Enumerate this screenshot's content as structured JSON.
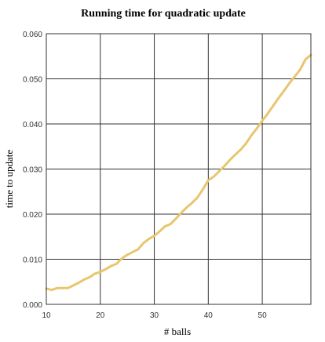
{
  "chart_data": {
    "type": "line",
    "title": "Running time for quadratic update",
    "xlabel": "# balls",
    "ylabel": "time to update",
    "xlim": [
      10,
      59
    ],
    "ylim": [
      0,
      0.06
    ],
    "xticks": [
      10,
      20,
      30,
      40,
      50
    ],
    "xtick_labels": [
      "10",
      "20",
      "30",
      "40",
      "50"
    ],
    "yticks": [
      0,
      0.01,
      0.02,
      0.03,
      0.04,
      0.05,
      0.06
    ],
    "ytick_labels": [
      "0.000",
      "0.010",
      "0.020",
      "0.030",
      "0.040",
      "0.050",
      "0.060"
    ],
    "grid": true,
    "legend": "none",
    "series": [
      {
        "color": "#e8c66e",
        "x": [
          10,
          11,
          12,
          13,
          14,
          15,
          16,
          17,
          18,
          19,
          20,
          21,
          22,
          23,
          24,
          25,
          26,
          27,
          28,
          29,
          30,
          31,
          32,
          33,
          34,
          35,
          36,
          37,
          38,
          39,
          40,
          41,
          42,
          43,
          44,
          45,
          46,
          47,
          48,
          49,
          50,
          51,
          52,
          53,
          54,
          55,
          56,
          57,
          58,
          59
        ],
        "y": [
          0.0035,
          0.0032,
          0.0036,
          0.0036,
          0.0036,
          0.0042,
          0.0048,
          0.0055,
          0.006,
          0.0068,
          0.0072,
          0.0078,
          0.0085,
          0.009,
          0.0102,
          0.011,
          0.0116,
          0.0122,
          0.0136,
          0.0145,
          0.0152,
          0.0162,
          0.0173,
          0.0178,
          0.019,
          0.0203,
          0.0215,
          0.0225,
          0.0237,
          0.0255,
          0.0275,
          0.0283,
          0.0295,
          0.0307,
          0.032,
          0.0332,
          0.0343,
          0.0357,
          0.0375,
          0.039,
          0.0407,
          0.0423,
          0.044,
          0.0457,
          0.0473,
          0.049,
          0.0505,
          0.052,
          0.0543,
          0.0553
        ]
      }
    ]
  }
}
